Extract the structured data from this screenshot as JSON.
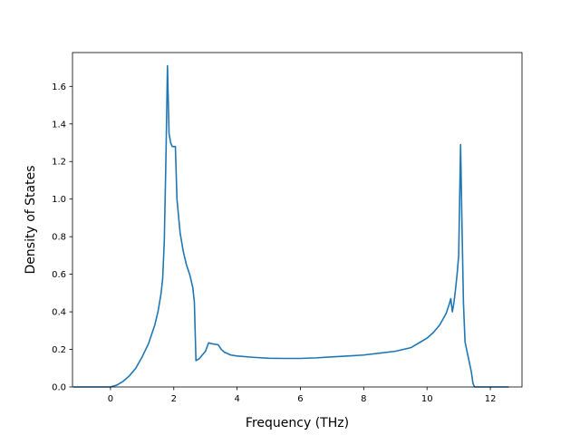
{
  "chart_data": {
    "type": "line",
    "title": "",
    "xlabel": "Frequency (THz)",
    "ylabel": "Density of States",
    "xlim": [
      -1.2,
      13.0
    ],
    "ylim": [
      0.0,
      1.78
    ],
    "xticks": [
      0,
      2,
      4,
      6,
      8,
      10,
      12
    ],
    "xtick_labels": [
      "0",
      "2",
      "4",
      "6",
      "8",
      "10",
      "12"
    ],
    "yticks": [
      0.0,
      0.2,
      0.4,
      0.6,
      0.8,
      1.0,
      1.2,
      1.4,
      1.6
    ],
    "ytick_labels": [
      "0.0",
      "0.2",
      "0.4",
      "0.6",
      "0.8",
      "1.0",
      "1.2",
      "1.4",
      "1.6"
    ],
    "grid": false,
    "legend": false,
    "line_color": "#1f77b4",
    "series": [
      {
        "x": [
          -1.17,
          0.0,
          0.2,
          0.4,
          0.6,
          0.8,
          1.0,
          1.2,
          1.4,
          1.5,
          1.6,
          1.65,
          1.7,
          1.75,
          1.8,
          1.85,
          1.9,
          1.95,
          2.0,
          2.05,
          2.1,
          2.2,
          2.3,
          2.4,
          2.5,
          2.6,
          2.65,
          2.7,
          2.8,
          2.9,
          3.0,
          3.1,
          3.2,
          3.4,
          3.5,
          3.6,
          3.8,
          4.0,
          4.5,
          5.0,
          5.5,
          6.0,
          6.5,
          7.0,
          7.5,
          8.0,
          8.5,
          9.0,
          9.5,
          9.8,
          10.0,
          10.2,
          10.4,
          10.5,
          10.6,
          10.7,
          10.75,
          10.8,
          10.85,
          10.9,
          10.95,
          11.0,
          11.03,
          11.06,
          11.1,
          11.15,
          11.2,
          11.3,
          11.35,
          11.4,
          11.45,
          11.5,
          11.6,
          12.58
        ],
        "y": [
          0.0,
          0.0,
          0.01,
          0.03,
          0.06,
          0.1,
          0.16,
          0.23,
          0.33,
          0.4,
          0.5,
          0.58,
          0.78,
          1.2,
          1.71,
          1.35,
          1.3,
          1.28,
          1.28,
          1.28,
          1.0,
          0.82,
          0.72,
          0.65,
          0.6,
          0.53,
          0.45,
          0.14,
          0.15,
          0.17,
          0.19,
          0.235,
          0.23,
          0.225,
          0.2,
          0.185,
          0.17,
          0.165,
          0.158,
          0.153,
          0.152,
          0.152,
          0.155,
          0.16,
          0.165,
          0.17,
          0.18,
          0.19,
          0.21,
          0.24,
          0.26,
          0.29,
          0.33,
          0.36,
          0.39,
          0.44,
          0.47,
          0.4,
          0.45,
          0.52,
          0.6,
          0.7,
          1.0,
          1.29,
          0.9,
          0.45,
          0.24,
          0.16,
          0.12,
          0.08,
          0.02,
          0.0,
          0.0,
          0.0
        ]
      }
    ]
  }
}
